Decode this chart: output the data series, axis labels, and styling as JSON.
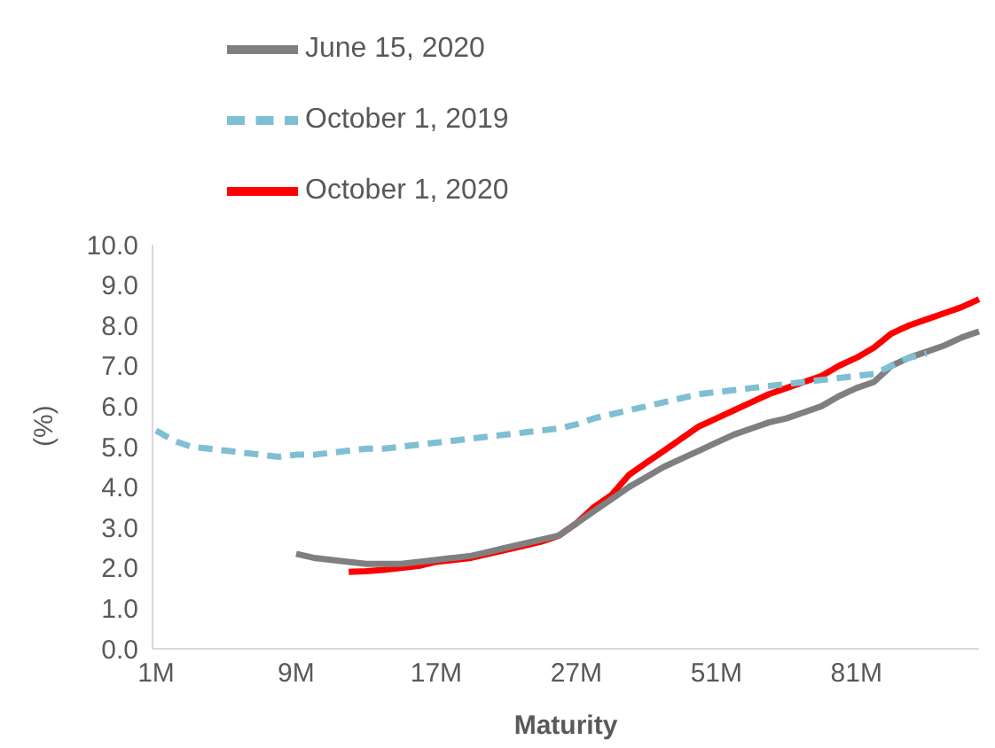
{
  "chart_data": {
    "type": "line",
    "xlabel": "Maturity",
    "ylabel": "(%)",
    "categories": [
      "1M",
      null,
      null,
      null,
      null,
      null,
      null,
      null,
      "9M",
      null,
      null,
      null,
      null,
      null,
      null,
      null,
      "17M",
      null,
      null,
      null,
      null,
      null,
      null,
      null,
      "27M",
      null,
      null,
      null,
      null,
      null,
      null,
      null,
      "51M",
      null,
      null,
      null,
      null,
      null,
      null,
      null,
      "81M",
      null,
      null,
      null,
      null,
      null,
      null,
      null
    ],
    "series": [
      {
        "name": "October 1, 2020",
        "color": "#ff0000",
        "line_style": "solid",
        "values": [
          null,
          null,
          null,
          null,
          null,
          null,
          null,
          null,
          null,
          null,
          null,
          1.9,
          1.92,
          1.95,
          2.0,
          2.05,
          2.15,
          2.2,
          2.25,
          2.35,
          2.45,
          2.55,
          2.65,
          2.8,
          3.1,
          3.5,
          3.8,
          4.3,
          4.6,
          4.9,
          5.2,
          5.5,
          5.7,
          5.9,
          6.1,
          6.3,
          6.45,
          6.6,
          6.75,
          7.0,
          7.2,
          7.45,
          7.8,
          8.0,
          8.15,
          8.3,
          8.45,
          8.65
        ]
      },
      {
        "name": "June 15, 2020",
        "color": "#7f7f7f",
        "line_style": "solid",
        "values": [
          null,
          null,
          null,
          null,
          null,
          null,
          null,
          null,
          2.35,
          2.25,
          2.2,
          2.15,
          2.1,
          2.1,
          2.1,
          2.15,
          2.2,
          2.25,
          2.3,
          2.4,
          2.5,
          2.6,
          2.7,
          2.8,
          3.1,
          3.4,
          3.7,
          4.0,
          4.25,
          4.5,
          4.7,
          4.9,
          5.1,
          5.3,
          5.45,
          5.6,
          5.7,
          5.85,
          6.0,
          6.25,
          6.45,
          6.6,
          7.0,
          7.2,
          7.35,
          7.5,
          7.7,
          7.85
        ]
      },
      {
        "name": "October 1, 2019",
        "color": "#7fbfd3",
        "line_style": "dashed",
        "values": [
          5.4,
          5.15,
          5.0,
          4.95,
          4.9,
          4.85,
          4.8,
          4.75,
          4.8,
          4.8,
          4.85,
          4.9,
          4.95,
          4.95,
          5.0,
          5.05,
          5.1,
          5.15,
          5.2,
          5.25,
          5.3,
          5.35,
          5.4,
          5.45,
          5.55,
          5.7,
          5.8,
          5.9,
          6.0,
          6.1,
          6.2,
          6.3,
          6.35,
          6.4,
          6.45,
          6.5,
          6.55,
          6.6,
          6.65,
          6.7,
          6.75,
          6.8,
          7.0,
          7.2,
          7.3,
          null,
          null,
          null
        ]
      }
    ],
    "ylim": [
      0,
      10
    ],
    "yticks": [
      {
        "value": 0,
        "label": "0.0"
      },
      {
        "value": 1,
        "label": "1.0"
      },
      {
        "value": 2,
        "label": "2.0"
      },
      {
        "value": 3,
        "label": "3.0"
      },
      {
        "value": 4,
        "label": "4.0"
      },
      {
        "value": 5,
        "label": "5.0"
      },
      {
        "value": 6,
        "label": "6.0"
      },
      {
        "value": 7,
        "label": "7.0"
      },
      {
        "value": 8,
        "label": "8.0"
      },
      {
        "value": 9,
        "label": "9.0"
      },
      {
        "value": 10,
        "label": "10.0"
      }
    ],
    "grid": false,
    "legend": "top"
  }
}
